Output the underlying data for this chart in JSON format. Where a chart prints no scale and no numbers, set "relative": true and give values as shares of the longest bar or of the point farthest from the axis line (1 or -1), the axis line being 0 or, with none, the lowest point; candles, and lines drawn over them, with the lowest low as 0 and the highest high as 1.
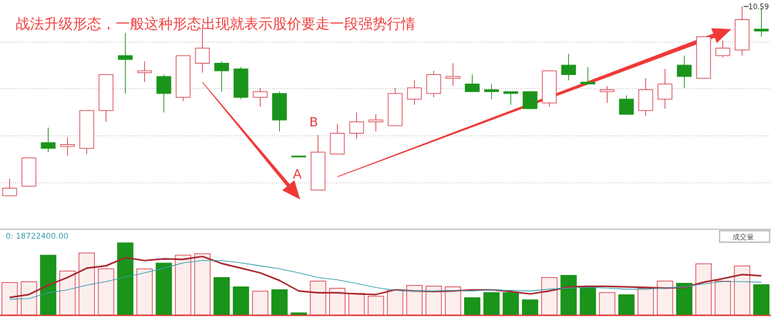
{
  "chart_data": [
    {
      "type": "candlestick",
      "relative": true,
      "title": "战法升级形态，一般这种形态出现就表示股价要走一段强势行情",
      "grid": true,
      "categories": [
        null,
        null,
        null,
        null,
        null,
        null,
        null,
        null,
        null,
        null,
        null,
        null,
        null,
        null,
        null,
        null,
        null,
        null,
        null,
        null,
        null,
        null,
        null,
        null,
        null,
        null,
        null,
        null,
        null,
        null,
        null,
        null,
        null,
        null,
        null,
        null,
        null,
        null,
        null,
        null
      ],
      "ohlc": [
        [
          0,
          0.09,
          0,
          0.04
        ],
        [
          0.05,
          0.2,
          0.05,
          0.2
        ],
        [
          0.28,
          0.36,
          0.23,
          0.25
        ],
        [
          0.26,
          0.31,
          0.21,
          0.27
        ],
        [
          0.25,
          0.45,
          0.22,
          0.45
        ],
        [
          0.45,
          0.64,
          0.39,
          0.64
        ],
        [
          0.74,
          0.86,
          0.54,
          0.72
        ],
        [
          0.65,
          0.71,
          0.6,
          0.66
        ],
        [
          0.63,
          0.64,
          0.44,
          0.54
        ],
        [
          0.52,
          0.74,
          0.5,
          0.74
        ],
        [
          0.7,
          0.88,
          0.65,
          0.78
        ],
        [
          0.7,
          0.71,
          0.55,
          0.66
        ],
        [
          0.67,
          0.68,
          0.51,
          0.52
        ],
        [
          0.52,
          0.57,
          0.47,
          0.55
        ],
        [
          0.54,
          0.55,
          0.34,
          0.4
        ],
        [
          0.21,
          0.21,
          0.21,
          0.21
        ],
        [
          0.03,
          0.32,
          0.03,
          0.23
        ],
        [
          0.22,
          0.38,
          0.22,
          0.33
        ],
        [
          0.33,
          0.44,
          0.3,
          0.39
        ],
        [
          0.39,
          0.43,
          0.34,
          0.4
        ],
        [
          0.37,
          0.57,
          0.37,
          0.54
        ],
        [
          0.51,
          0.61,
          0.48,
          0.57
        ],
        [
          0.54,
          0.66,
          0.52,
          0.64
        ],
        [
          0.62,
          0.7,
          0.58,
          0.63
        ],
        [
          0.59,
          0.64,
          0.55,
          0.55
        ],
        [
          0.56,
          0.59,
          0.51,
          0.55
        ],
        [
          0.55,
          0.55,
          0.48,
          0.54
        ],
        [
          0.55,
          0.55,
          0.46,
          0.46
        ],
        [
          0.49,
          0.66,
          0.47,
          0.66
        ],
        [
          0.69,
          0.75,
          0.61,
          0.64
        ],
        [
          0.6,
          0.68,
          0.59,
          0.59
        ],
        [
          0.55,
          0.58,
          0.49,
          0.56
        ],
        [
          0.51,
          0.53,
          0.43,
          0.43
        ],
        [
          0.45,
          0.62,
          0.42,
          0.56
        ],
        [
          0.51,
          0.67,
          0.46,
          0.59
        ],
        [
          0.69,
          0.74,
          0.57,
          0.63
        ],
        [
          0.62,
          0.84,
          0.62,
          0.84
        ],
        [
          0.74,
          0.82,
          0.73,
          0.78
        ],
        [
          0.77,
          1,
          0.74,
          0.93
        ],
        [
          0.88,
          0.99,
          0.84,
          0.87
        ]
      ],
      "colors": [
        "#d9434b",
        "#d9434b",
        "#1a941a",
        "#d9434b",
        "#d9434b",
        "#d9434b",
        "#1a941a",
        "#d9434b",
        "#1a941a",
        "#d9434b",
        "#d9434b",
        "#1a941a",
        "#1a941a",
        "#d9434b",
        "#1a941a",
        "#1a941a",
        "#d9434b",
        "#d9434b",
        "#d9434b",
        "#d9434b",
        "#d9434b",
        "#d9434b",
        "#d9434b",
        "#d9434b",
        "#1a941a",
        "#1a941a",
        "#1a941a",
        "#1a941a",
        "#d9434b",
        "#1a941a",
        "#1a941a",
        "#d9434b",
        "#1a941a",
        "#d9434b",
        "#d9434b",
        "#1a941a",
        "#d9434b",
        "#d9434b",
        "#d9434b",
        "#1a941a"
      ],
      "annotations": [
        "A",
        "B",
        "10.59"
      ]
    },
    {
      "type": "bar",
      "relative": true,
      "categories": [
        null,
        null,
        null,
        null,
        null,
        null,
        null,
        null,
        null,
        null,
        null,
        null,
        null,
        null,
        null,
        null,
        null,
        null,
        null,
        null,
        null,
        null,
        null,
        null,
        null,
        null,
        null,
        null,
        null,
        null,
        null,
        null,
        null,
        null,
        null,
        null,
        null,
        null,
        null,
        null
      ],
      "series": [
        {
          "type": "bar",
          "values": [
            0.45,
            0.46,
            0.83,
            0.61,
            0.86,
            0.64,
            1,
            0.64,
            0.72,
            0.83,
            0.85,
            0.52,
            0.39,
            0.33,
            0.35,
            0.03,
            0.47,
            0.37,
            0.3,
            0.26,
            0.35,
            0.41,
            0.4,
            0.39,
            0.24,
            0.31,
            0.31,
            0.21,
            0.52,
            0.55,
            0.4,
            0.31,
            0.28,
            0.37,
            0.47,
            0.44,
            0.71,
            0.47,
            0.68,
            0.42
          ],
          "colors": [
            "#d9434b",
            "#d9434b",
            "#1a941a",
            "#d9434b",
            "#d9434b",
            "#d9434b",
            "#1a941a",
            "#d9434b",
            "#1a941a",
            "#d9434b",
            "#d9434b",
            "#1a941a",
            "#1a941a",
            "#d9434b",
            "#1a941a",
            "#1a941a",
            "#d9434b",
            "#d9434b",
            "#d9434b",
            "#d9434b",
            "#d9434b",
            "#d9434b",
            "#d9434b",
            "#d9434b",
            "#1a941a",
            "#1a941a",
            "#1a941a",
            "#1a941a",
            "#d9434b",
            "#1a941a",
            "#1a941a",
            "#d9434b",
            "#1a941a",
            "#d9434b",
            "#d9434b",
            "#1a941a",
            "#d9434b",
            "#d9434b",
            "#d9434b",
            "#1a941a"
          ]
        }
      ],
      "annotations": [
        "0: 18722400.00",
        "成交量"
      ]
    },
    {
      "type": "line",
      "relative": true,
      "categories": [
        null,
        null,
        null,
        null,
        null,
        null,
        null,
        null,
        null,
        null,
        null,
        null,
        null,
        null,
        null,
        null,
        null,
        null,
        null,
        null,
        null,
        null,
        null,
        null,
        null,
        null,
        null,
        null,
        null,
        null,
        null,
        null,
        null,
        null,
        null,
        null,
        null,
        null,
        null,
        null
      ],
      "series": [
        {
          "type": "line",
          "color": "#a8272f",
          "values": [
            0.3,
            0.35,
            0.51,
            0.64,
            0.8,
            0.84,
            0.98,
            0.93,
            0.96,
            0.95,
            1,
            0.88,
            0.8,
            0.72,
            0.59,
            0.41,
            0.38,
            0.38,
            0.36,
            0.35,
            0.43,
            0.41,
            0.4,
            0.41,
            0.43,
            0.43,
            0.4,
            0.36,
            0.41,
            0.48,
            0.49,
            0.49,
            0.48,
            0.47,
            0.46,
            0.47,
            0.56,
            0.62,
            0.69,
            0.67
          ]
        },
        {
          "type": "line",
          "color": "#3a9fae",
          "values": [
            0.27,
            0.28,
            0.38,
            0.43,
            0.51,
            0.57,
            0.65,
            0.72,
            0.8,
            0.89,
            0.93,
            0.93,
            0.89,
            0.84,
            0.79,
            0.72,
            0.64,
            0.6,
            0.54,
            0.47,
            0.42,
            0.41,
            0.41,
            0.42,
            0.41,
            0.43,
            0.42,
            0.41,
            0.44,
            0.46,
            0.47,
            0.46,
            0.44,
            0.44,
            0.46,
            0.48,
            0.53,
            0.57,
            0.57,
            0.56
          ]
        }
      ]
    }
  ]
}
